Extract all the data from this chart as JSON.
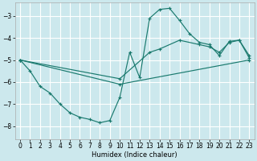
{
  "xlabel": "Humidex (Indice chaleur)",
  "bg_color": "#cce8ed",
  "grid_color": "#ffffff",
  "line_color": "#1a7a6e",
  "xlim": [
    -0.5,
    23.5
  ],
  "ylim": [
    -8.6,
    -2.4
  ],
  "xticks": [
    0,
    1,
    2,
    3,
    4,
    5,
    6,
    7,
    8,
    9,
    10,
    11,
    12,
    13,
    14,
    15,
    16,
    17,
    18,
    19,
    20,
    21,
    22,
    23
  ],
  "yticks": [
    -8,
    -7,
    -6,
    -5,
    -4,
    -3
  ],
  "series": [
    {
      "x": [
        0,
        1,
        2,
        3,
        4,
        5,
        6,
        7,
        8,
        9,
        10,
        11,
        12,
        13,
        14,
        15,
        16,
        17,
        18,
        19,
        20,
        21,
        22,
        23
      ],
      "y": [
        -5.0,
        -5.5,
        -6.2,
        -6.5,
        -7.0,
        -7.4,
        -7.6,
        -7.7,
        -7.85,
        -7.75,
        -6.7,
        -4.65,
        -5.8,
        -3.1,
        -2.7,
        -2.65,
        -3.2,
        -3.8,
        -4.2,
        -4.3,
        -4.8,
        -4.15,
        -4.1,
        -4.8
      ]
    },
    {
      "x": [
        0,
        10,
        13,
        14,
        16,
        18,
        19,
        20,
        21,
        22,
        23
      ],
      "y": [
        -5.0,
        -5.85,
        -4.65,
        -4.5,
        -4.1,
        -4.3,
        -4.4,
        -4.65,
        -4.2,
        -4.1,
        -4.9
      ]
    },
    {
      "x": [
        0,
        10,
        23
      ],
      "y": [
        -5.0,
        -6.1,
        -5.0
      ]
    }
  ]
}
